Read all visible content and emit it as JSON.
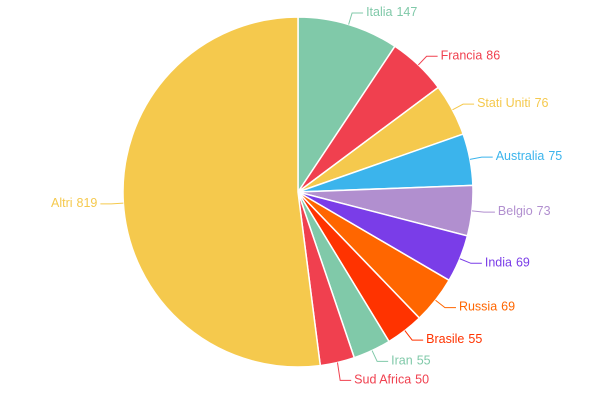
{
  "chart_data": {
    "type": "pie",
    "categories": [
      "Italia",
      "Francia",
      "Stati Uniti",
      "Australia",
      "Belgio",
      "India",
      "Russia",
      "Brasile",
      "Iran",
      "Sud Africa",
      "Altri"
    ],
    "values": [
      147,
      86,
      76,
      75,
      73,
      69,
      69,
      55,
      55,
      50,
      819
    ],
    "colors": [
      "#80c9a9",
      "#f0404f",
      "#f5c94d",
      "#3bb4ec",
      "#b18fcf",
      "#7a3de8",
      "#ff6600",
      "#ff3300",
      "#80c9a9",
      "#f0404f",
      "#f5c94d"
    ]
  }
}
